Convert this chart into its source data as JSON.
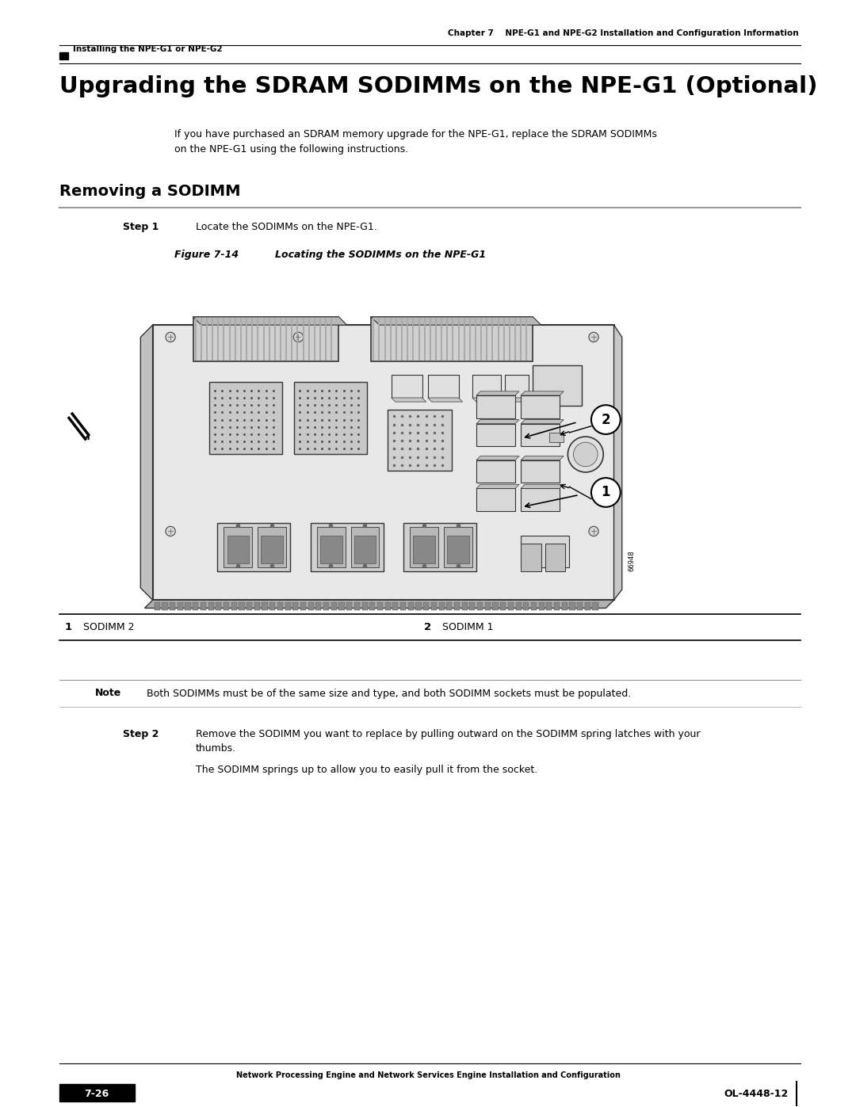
{
  "bg_color": "#ffffff",
  "page_width": 10.8,
  "page_height": 13.97,
  "header_top_text": "Chapter 7    NPE-G1 and NPE-G2 Installation and Configuration Information",
  "header_left_text": "Installing the NPE-G1 or NPE-G2",
  "main_title": "Upgrading the SDRAM SODIMMs on the NPE-G1 (Optional)",
  "intro_text": "If you have purchased an SDRAM memory upgrade for the NPE-G1, replace the SDRAM SODIMMs\non the NPE-G1 using the following instructions.",
  "section_title": "Removing a SODIMM",
  "step1_label": "Step 1",
  "step1_text": "Locate the SODIMMs on the NPE-G1.",
  "figure_label": "Figure 7-14",
  "figure_caption": "Locating the SODIMMs on the NPE-G1",
  "table_col1_num": "1",
  "table_col1_text": "SODIMM 2",
  "table_col2_num": "2",
  "table_col2_text": "SODIMM 1",
  "note_label": "Note",
  "note_text": "Both SODIMMs must be of the same size and type, and both SODIMM sockets must be populated.",
  "step2_label": "Step 2",
  "step2_text": "Remove the SODIMM you want to replace by pulling outward on the SODIMM spring latches with your\nthumbs.",
  "step2_text2": "The SODIMM springs up to allow you to easily pull it from the socket.",
  "footer_center_text": "Network Processing Engine and Network Services Engine Installation and Configuration",
  "footer_left_text": "7-26",
  "footer_right_text": "OL-4448-12",
  "figure_code": "66948"
}
